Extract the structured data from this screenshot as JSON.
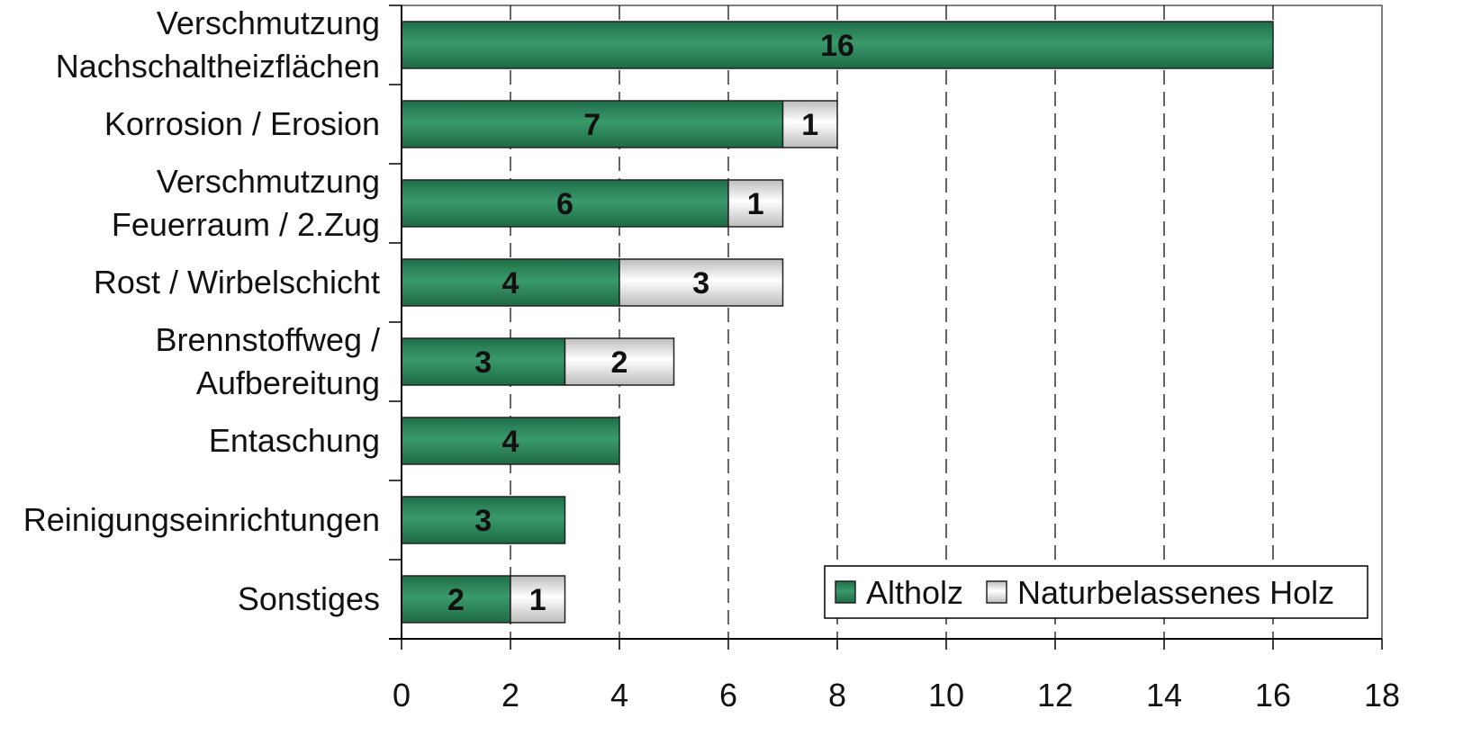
{
  "chart_data": {
    "type": "bar",
    "orientation": "horizontal",
    "stacked": true,
    "title": "",
    "xlabel": "",
    "ylabel": "",
    "categories": [
      [
        "Verschmutzung",
        "Nachschaltheizflächen"
      ],
      [
        "Korrosion / Erosion"
      ],
      [
        "Verschmutzung",
        "Feuerraum / 2.Zug"
      ],
      [
        "Rost / Wirbelschicht"
      ],
      [
        "Brennstoffweg /",
        "Aufbereitung"
      ],
      [
        "Entaschung"
      ],
      [
        "Reinigungseinrichtungen"
      ],
      [
        "Sonstiges"
      ]
    ],
    "series": [
      {
        "name": "Altholz",
        "values": [
          16,
          7,
          6,
          4,
          3,
          4,
          3,
          2
        ],
        "color": "#2e8a5c"
      },
      {
        "name": "Naturbelassenes Holz",
        "values": [
          0,
          1,
          1,
          3,
          2,
          0,
          0,
          1
        ],
        "color": "#e8e8e8"
      }
    ],
    "xlim": [
      0,
      18
    ],
    "xticks": [
      0,
      2,
      4,
      6,
      8,
      10,
      12,
      14,
      16,
      18
    ],
    "grid": "vertical dashed",
    "legend_position": "bottom-right",
    "data_labels": true
  }
}
